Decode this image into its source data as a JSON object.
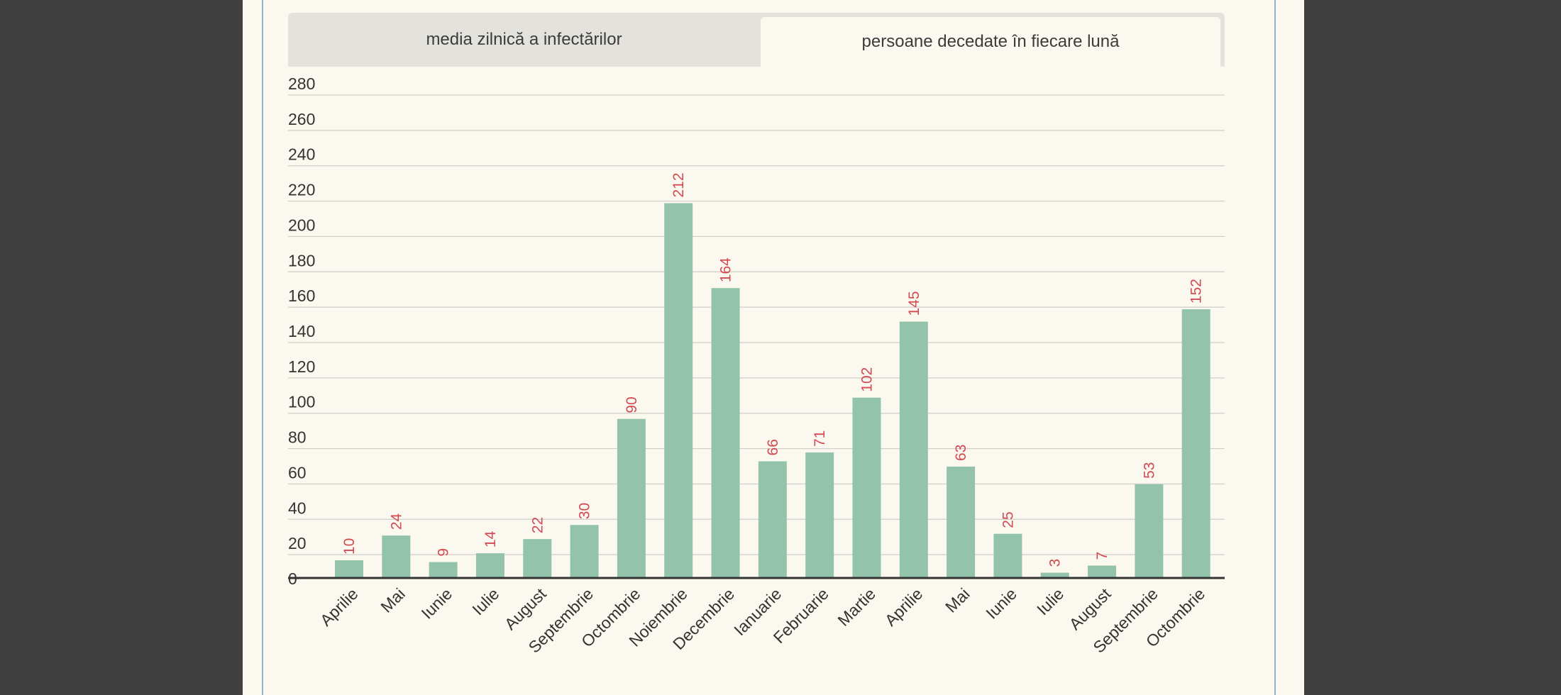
{
  "tabs": {
    "left_label": "media zilnică a infectărilor",
    "right_label": "persoane decedate în fiecare lună",
    "active": "right"
  },
  "colors": {
    "bar": "#93c4ab",
    "data_label": "#d24b52",
    "grid": "#cfcdc8",
    "axis": "#333333",
    "background": "#fbf8ef"
  },
  "chart_data": {
    "type": "bar",
    "title": "",
    "xlabel": "",
    "ylabel": "",
    "ylim": [
      0,
      280
    ],
    "yticks": [
      0,
      20,
      40,
      60,
      80,
      100,
      120,
      140,
      160,
      180,
      200,
      220,
      240,
      260,
      280
    ],
    "grid": true,
    "categories": [
      "Aprilie",
      "Mai",
      "Iunie",
      "Iulie",
      "August",
      "Septembrie",
      "Octombrie",
      "Noiembrie",
      "Decembrie",
      "Ianuarie",
      "Februarie",
      "Martie",
      "Aprilie",
      "Mai",
      "Iunie",
      "Iulie",
      "August",
      "Septembrie",
      "Octombrie"
    ],
    "values": [
      10,
      24,
      9,
      14,
      22,
      30,
      90,
      212,
      164,
      66,
      71,
      102,
      145,
      63,
      25,
      3,
      7,
      53,
      152
    ]
  }
}
